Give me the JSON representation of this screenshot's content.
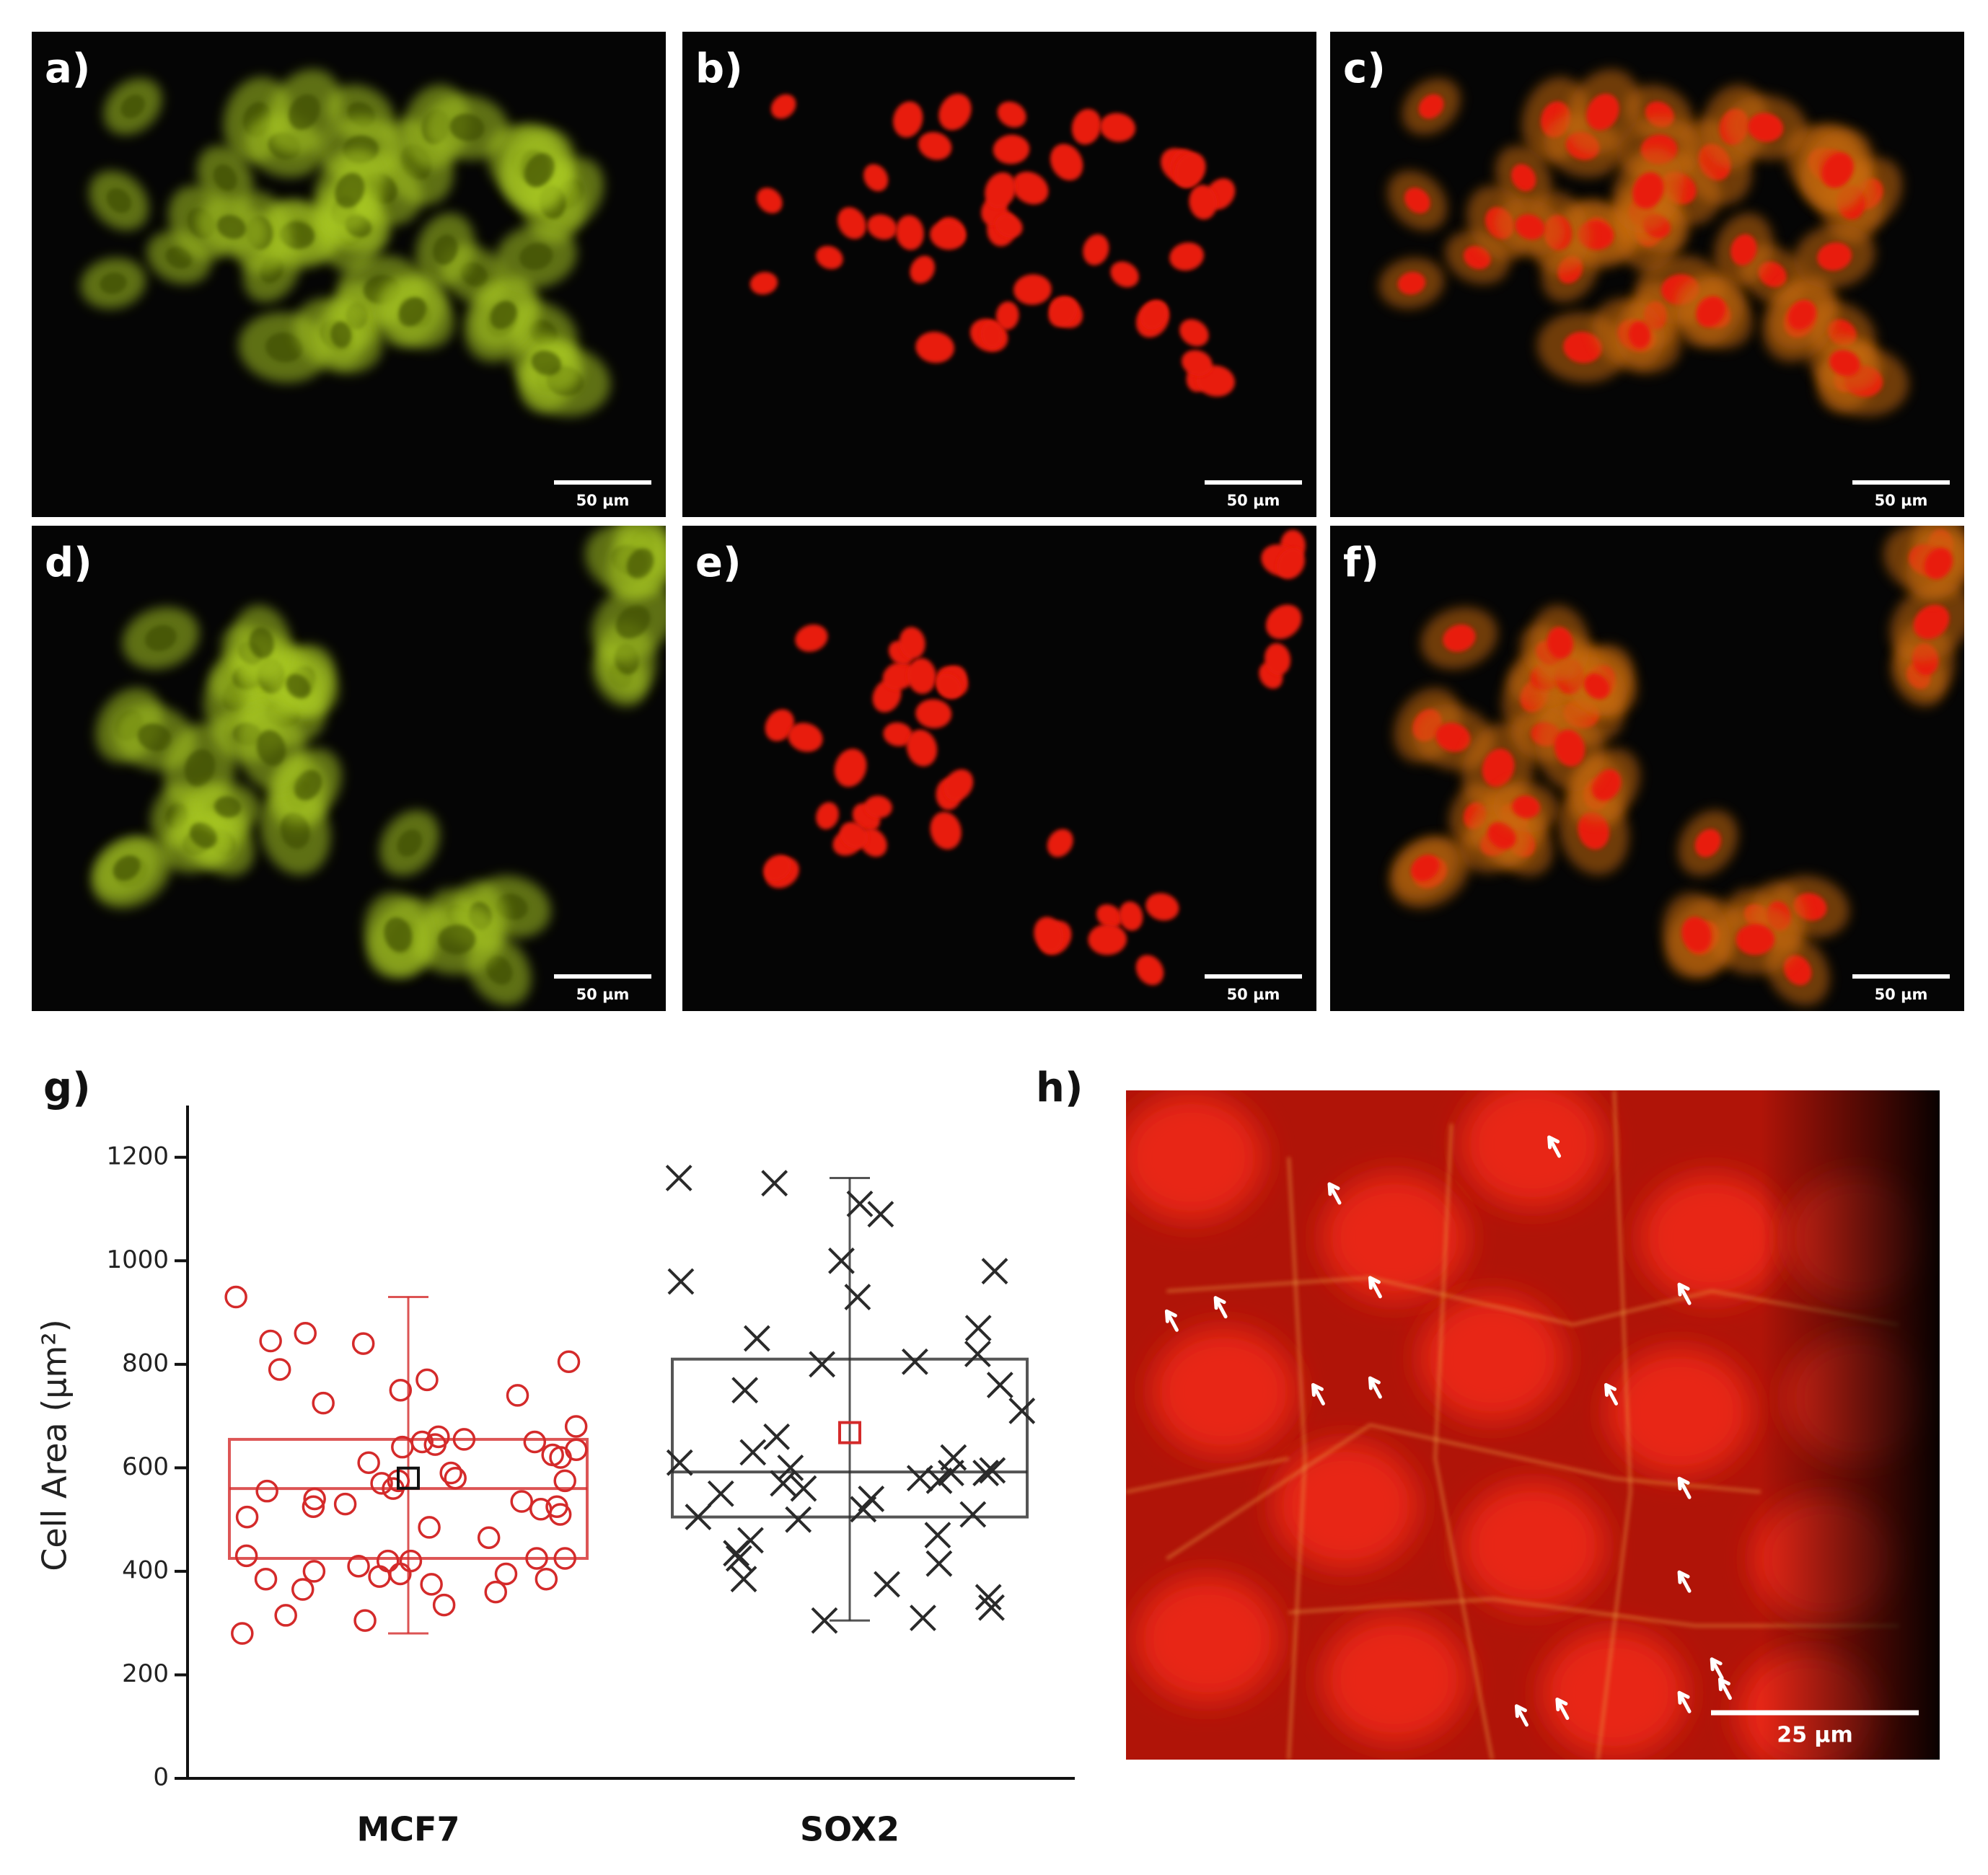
{
  "panels": [
    {
      "label": "a)",
      "scale_bar": "50 µm"
    },
    {
      "label": "b)",
      "scale_bar": "50 µm"
    },
    {
      "label": "c)",
      "scale_bar": "50 µm"
    },
    {
      "label": "d)",
      "scale_bar": "50 µm"
    },
    {
      "label": "e)",
      "scale_bar": "50 µm"
    },
    {
      "label": "f)",
      "scale_bar": "50 µm"
    }
  ],
  "g": {
    "label": "g)"
  },
  "h": {
    "label": "h)",
    "scale_bar": "25 µm"
  },
  "chart_data": {
    "type": "box",
    "ylabel": "Cell Area (µm²)",
    "categories": [
      "MCF7",
      "SOX2"
    ],
    "ylim": [
      0,
      1300
    ],
    "yticks": [
      0,
      200,
      400,
      600,
      800,
      1000,
      1200
    ],
    "boxes": [
      {
        "color": "#d42a2a",
        "mean_color": "#111111",
        "marker": "circle",
        "whisker_low": 280,
        "q1": 425,
        "median": 560,
        "q3": 655,
        "whisker_high": 930,
        "mean": 580,
        "points": [
          930,
          860,
          845,
          840,
          805,
          790,
          770,
          750,
          740,
          725,
          680,
          660,
          655,
          650,
          650,
          645,
          640,
          635,
          625,
          620,
          610,
          590,
          580,
          575,
          575,
          570,
          560,
          555,
          540,
          535,
          530,
          525,
          525,
          520,
          510,
          505,
          485,
          465,
          430,
          425,
          425,
          420,
          420,
          410,
          400,
          395,
          395,
          390,
          385,
          385,
          375,
          365,
          360,
          335,
          315,
          305,
          280
        ]
      },
      {
        "color": "#2a2a2a",
        "mean_color": "#d42a2a",
        "marker": "cross",
        "whisker_low": 305,
        "q1": 505,
        "median": 592,
        "q3": 810,
        "whisker_high": 1160,
        "mean": 668,
        "points": [
          1160,
          1150,
          1110,
          1090,
          1000,
          980,
          960,
          930,
          870,
          850,
          820,
          805,
          800,
          760,
          750,
          710,
          660,
          630,
          620,
          610,
          600,
          595,
          590,
          590,
          580,
          575,
          570,
          560,
          550,
          540,
          520,
          510,
          505,
          500,
          470,
          460,
          435,
          425,
          415,
          385,
          375,
          350,
          330,
          310,
          305
        ]
      }
    ]
  }
}
